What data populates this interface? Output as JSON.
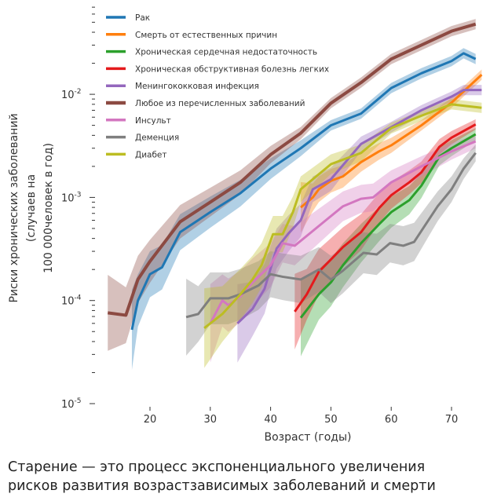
{
  "chart_data": {
    "type": "line",
    "xlabel": "Возраст (годы)",
    "ylabel_lines": [
      "Риски хронических заболеваний",
      "(случаев на",
      "100 000человек в год)"
    ],
    "yscale": "log",
    "xlim": [
      13,
      75
    ],
    "ylim": [
      1e-05,
      0.07
    ],
    "xticks": [
      20,
      30,
      40,
      50,
      60,
      70
    ],
    "yticks": [
      {
        "base": "10",
        "exp": "-5",
        "value": 1e-05
      },
      {
        "base": "10",
        "exp": "-4",
        "value": 0.0001
      },
      {
        "base": "10",
        "exp": "-3",
        "value": 0.001
      },
      {
        "base": "10",
        "exp": "-2",
        "value": 0.01
      }
    ],
    "grid": false,
    "legend_position": "top-left",
    "series": [
      {
        "name": "Рак",
        "color": "#1f77b4",
        "x": [
          17,
          18,
          20,
          22,
          25,
          30,
          35,
          40,
          45,
          50,
          55,
          60,
          65,
          70,
          72,
          74
        ],
        "values": [
          5.2e-05,
          0.0001,
          0.00018,
          0.00021,
          0.00046,
          0.00072,
          0.0011,
          0.0019,
          0.003,
          0.005,
          0.0065,
          0.0115,
          0.016,
          0.021,
          0.025,
          0.022
        ]
      },
      {
        "name": "Смерть от естественных причин",
        "color": "#ff7f0e",
        "x": [
          45,
          47,
          48,
          50,
          52,
          55,
          58,
          60,
          65,
          70,
          75
        ],
        "values": [
          0.0008,
          0.001,
          0.0012,
          0.00145,
          0.0016,
          0.0022,
          0.0028,
          0.0032,
          0.005,
          0.0083,
          0.0155
        ]
      },
      {
        "name": "Хроническая сердечная недостаточность",
        "color": "#2ca02c",
        "x": [
          45,
          48,
          50,
          52,
          55,
          58,
          60,
          63,
          65,
          68,
          70,
          74
        ],
        "values": [
          6.8e-05,
          0.000115,
          0.00015,
          0.00022,
          0.00036,
          0.00055,
          0.00072,
          0.00094,
          0.0013,
          0.0025,
          0.003,
          0.0041
        ]
      },
      {
        "name": "Хроническая обструктивная болезнь легких",
        "color": "#e41a1c",
        "x": [
          44,
          46,
          48,
          50,
          52,
          55,
          58,
          60,
          63,
          65,
          68,
          70,
          74
        ],
        "values": [
          7.8e-05,
          0.000115,
          0.00019,
          0.00025,
          0.00033,
          0.00046,
          0.00079,
          0.00105,
          0.0014,
          0.00175,
          0.0031,
          0.0038,
          0.0051
        ]
      },
      {
        "name": "Менингококковая инфекция",
        "color": "#9467bd",
        "x": [
          34.5,
          37,
          39,
          41,
          43,
          45,
          47,
          50,
          55,
          60,
          65,
          70,
          72,
          75
        ],
        "values": [
          6e-05,
          8.3e-05,
          0.00013,
          0.00032,
          0.00045,
          0.0006,
          0.0012,
          0.0015,
          0.0033,
          0.0048,
          0.007,
          0.0095,
          0.011,
          0.011
        ]
      },
      {
        "name": "Любое из перечисленных заболеваний",
        "color": "#8c4a42",
        "x": [
          13,
          16,
          18,
          20,
          25,
          30,
          35,
          40,
          45,
          50,
          55,
          60,
          65,
          70,
          74
        ],
        "values": [
          7.6e-05,
          7.2e-05,
          0.00016,
          0.00024,
          0.00058,
          0.0009,
          0.0014,
          0.0026,
          0.0042,
          0.0082,
          0.013,
          0.022,
          0.03,
          0.041,
          0.048
        ]
      },
      {
        "name": "Инсульт",
        "color": "#d377c0",
        "x": [
          30,
          32,
          33,
          35,
          37,
          40,
          42,
          44,
          49,
          52,
          55,
          57,
          60,
          65,
          70,
          74
        ],
        "values": [
          6e-05,
          0.0001,
          9e-05,
          0.00011,
          0.00015,
          0.00022,
          0.00036,
          0.00034,
          0.00059,
          0.00082,
          0.00097,
          0.001,
          0.0014,
          0.002,
          0.0028,
          0.0035
        ]
      },
      {
        "name": "Деменция",
        "color": "#7f7f7f",
        "x": [
          26,
          28,
          30,
          33,
          35,
          38,
          40,
          42,
          45,
          48,
          50,
          52,
          55.4,
          57.6,
          59.8,
          62,
          63.8,
          66,
          67.7,
          70,
          72,
          74
        ],
        "values": [
          6.9e-05,
          7.4e-05,
          0.000105,
          0.000105,
          0.000115,
          0.00014,
          0.00018,
          0.00017,
          0.00016,
          0.0002,
          0.00016,
          0.000195,
          0.00029,
          0.00028,
          0.00036,
          0.00034,
          0.00037,
          0.00058,
          0.00082,
          0.0012,
          0.0019,
          0.0027
        ]
      },
      {
        "name": "Диабет",
        "color": "#bcbd22",
        "x": [
          29,
          32,
          35,
          37,
          38.5,
          40.4,
          42,
          43.7,
          45,
          50,
          55,
          60,
          65,
          70,
          75
        ],
        "values": [
          5.4e-05,
          7.4e-05,
          0.000115,
          0.00016,
          0.00022,
          0.00044,
          0.00044,
          0.00072,
          0.0012,
          0.0021,
          0.0027,
          0.0047,
          0.0062,
          0.008,
          0.0074
        ]
      }
    ]
  },
  "caption": {
    "line1": "Старение — это процесс экспоненциального увеличения",
    "line2": "рисков развития возрастзависимых заболеваний и смерти"
  }
}
